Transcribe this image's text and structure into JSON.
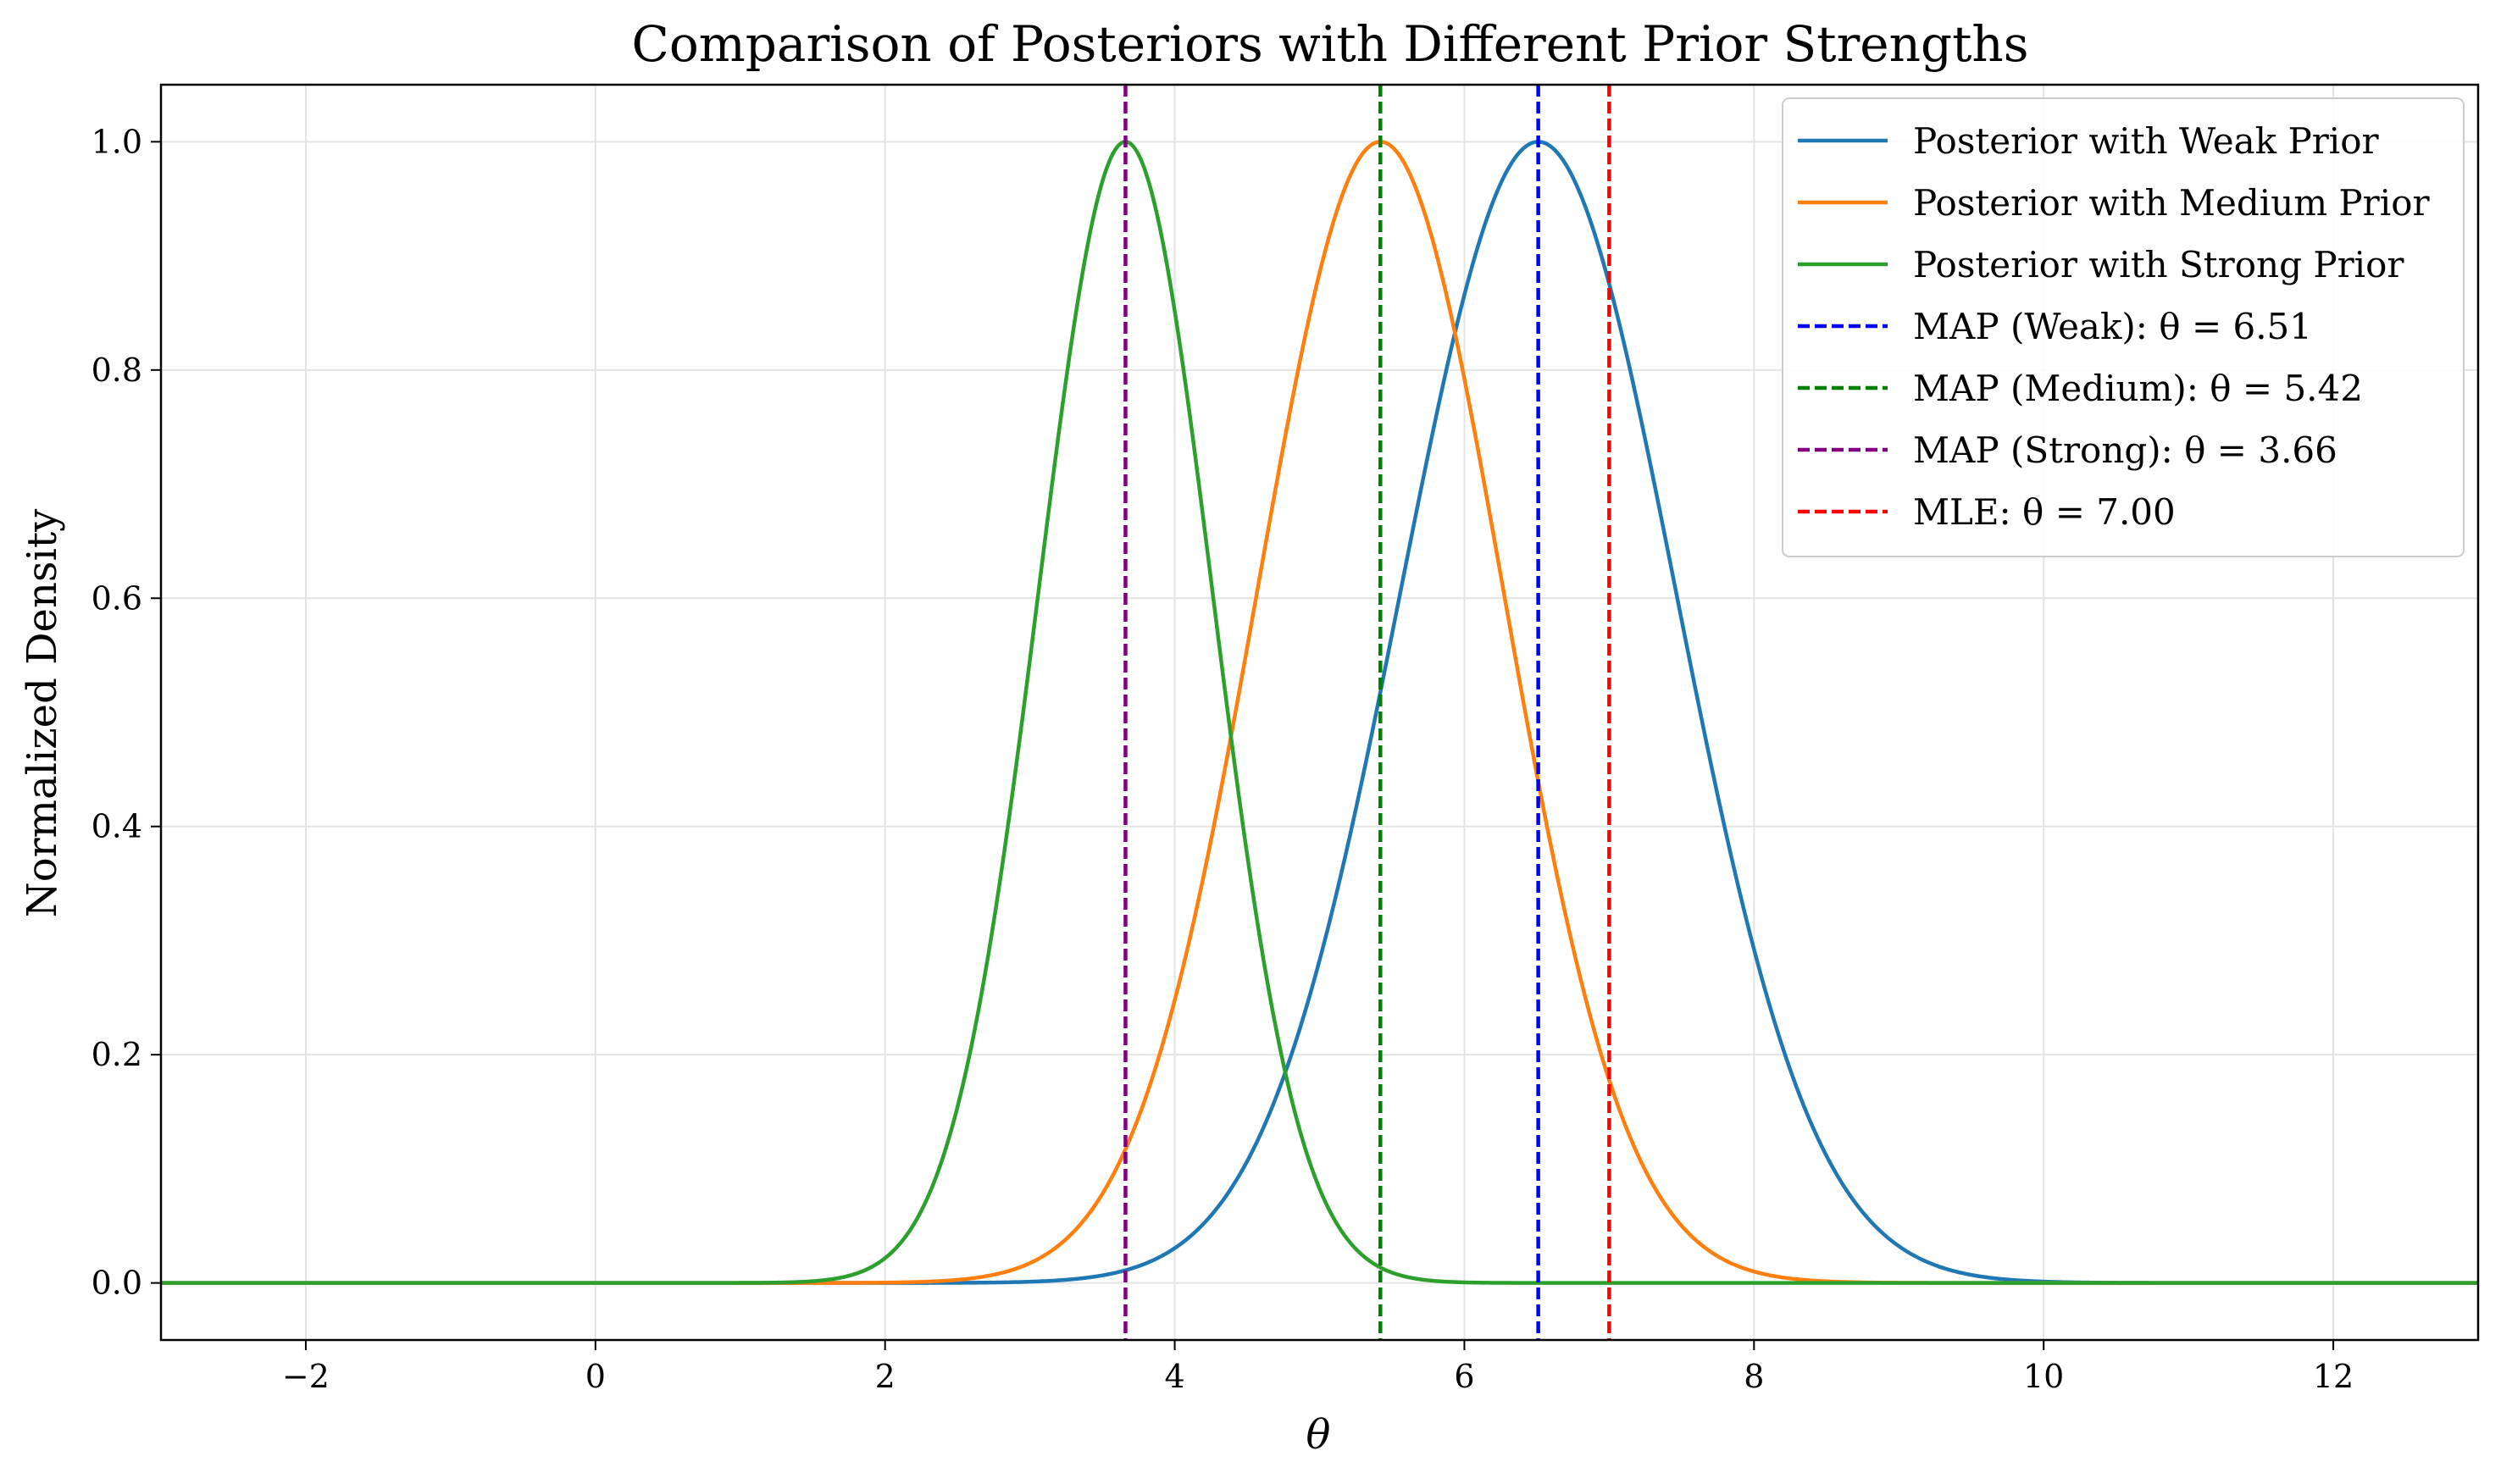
{
  "chart_data": {
    "type": "line",
    "title": "Comparison of Posteriors with Different Prior Strengths",
    "xlabel": "θ",
    "ylabel": "Normalized Density",
    "xlim": [
      -3,
      13
    ],
    "ylim": [
      -0.05,
      1.05
    ],
    "xticks": [
      -2,
      0,
      2,
      4,
      6,
      8,
      10,
      12
    ],
    "xtick_labels": [
      "−2",
      "0",
      "2",
      "4",
      "6",
      "8",
      "10",
      "12"
    ],
    "yticks": [
      0.0,
      0.2,
      0.4,
      0.6,
      0.8,
      1.0
    ],
    "ytick_labels": [
      "0.0",
      "0.2",
      "0.4",
      "0.6",
      "0.8",
      "1.0"
    ],
    "grid": true,
    "legend_position": "top-right",
    "series": [
      {
        "name": "Posterior with Weak Prior",
        "kind": "gaussian",
        "mean": 6.51,
        "sd": 0.95,
        "color": "#1f77b4"
      },
      {
        "name": "Posterior with Medium Prior",
        "kind": "gaussian",
        "mean": 5.42,
        "sd": 0.85,
        "color": "#ff7f0e"
      },
      {
        "name": "Posterior with Strong Prior",
        "kind": "gaussian",
        "mean": 3.66,
        "sd": 0.6,
        "color": "#2ca02c"
      }
    ],
    "vlines": [
      {
        "name": "MAP (Weak): θ = 6.51",
        "x": 6.51,
        "color": "#0000ff"
      },
      {
        "name": "MAP (Medium): θ = 5.42",
        "x": 5.42,
        "color": "#008000"
      },
      {
        "name": "MAP (Strong): θ = 3.66",
        "x": 3.66,
        "color": "#800080"
      },
      {
        "name": "MLE: θ = 7.00",
        "x": 7.0,
        "color": "#ff0000"
      }
    ]
  }
}
